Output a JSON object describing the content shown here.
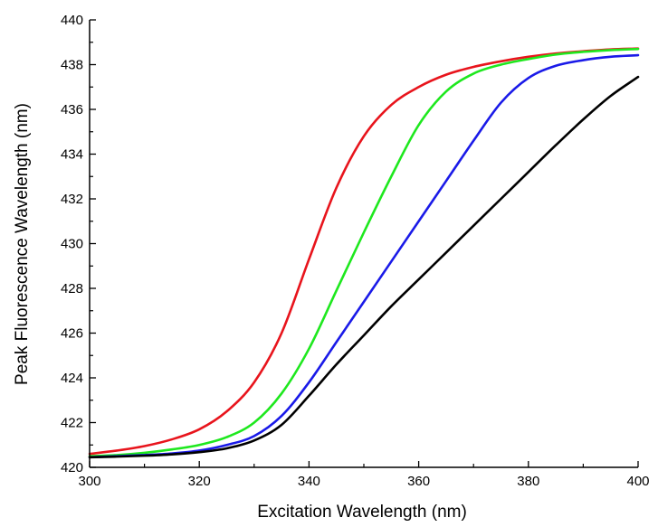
{
  "chart_data": {
    "type": "line",
    "title": "",
    "xlabel": "Excitation Wavelength (nm)",
    "ylabel": "Peak Fluorescence Wavelength (nm)",
    "xlim": [
      300,
      400
    ],
    "ylim": [
      420,
      440
    ],
    "xticks": [
      300,
      320,
      340,
      360,
      380,
      400
    ],
    "yticks": [
      420,
      422,
      424,
      426,
      428,
      430,
      432,
      434,
      436,
      438,
      440
    ],
    "grid": false,
    "legend": "none",
    "series": [
      {
        "name": "red",
        "color": "#e8141c",
        "x": [
          300,
          305,
          310,
          315,
          320,
          325,
          330,
          335,
          340,
          345,
          350,
          355,
          360,
          365,
          370,
          375,
          380,
          385,
          390,
          395,
          400
        ],
        "y": [
          420.6,
          420.75,
          420.95,
          421.25,
          421.7,
          422.5,
          423.8,
          426.0,
          429.3,
          432.5,
          434.8,
          436.2,
          437.0,
          437.55,
          437.9,
          438.15,
          438.35,
          438.5,
          438.6,
          438.68,
          438.72
        ]
      },
      {
        "name": "green",
        "color": "#1ee81e",
        "x": [
          300,
          305,
          310,
          315,
          320,
          325,
          330,
          335,
          340,
          345,
          350,
          355,
          360,
          365,
          370,
          375,
          380,
          385,
          390,
          395,
          400
        ],
        "y": [
          420.5,
          420.55,
          420.65,
          420.8,
          421.0,
          421.35,
          422.0,
          423.3,
          425.3,
          427.9,
          430.5,
          433.0,
          435.3,
          436.8,
          437.6,
          438.0,
          438.25,
          438.45,
          438.57,
          438.65,
          438.7
        ]
      },
      {
        "name": "blue",
        "color": "#1a1ae8",
        "x": [
          300,
          305,
          310,
          315,
          320,
          325,
          330,
          335,
          340,
          345,
          350,
          355,
          360,
          365,
          370,
          375,
          380,
          385,
          390,
          395,
          400
        ],
        "y": [
          420.45,
          420.5,
          420.55,
          420.62,
          420.75,
          421.0,
          421.4,
          422.3,
          423.8,
          425.6,
          427.4,
          429.2,
          431.0,
          432.8,
          434.6,
          436.3,
          437.4,
          437.95,
          438.2,
          438.35,
          438.42
        ]
      },
      {
        "name": "black",
        "color": "#000000",
        "x": [
          300,
          305,
          310,
          315,
          320,
          325,
          330,
          335,
          340,
          345,
          350,
          355,
          360,
          365,
          370,
          375,
          380,
          385,
          390,
          395,
          400
        ],
        "y": [
          420.45,
          420.48,
          420.52,
          420.58,
          420.68,
          420.85,
          421.2,
          421.9,
          423.2,
          424.6,
          425.9,
          427.2,
          428.4,
          429.6,
          430.8,
          432.0,
          433.2,
          434.4,
          435.55,
          436.6,
          437.45
        ]
      }
    ]
  }
}
